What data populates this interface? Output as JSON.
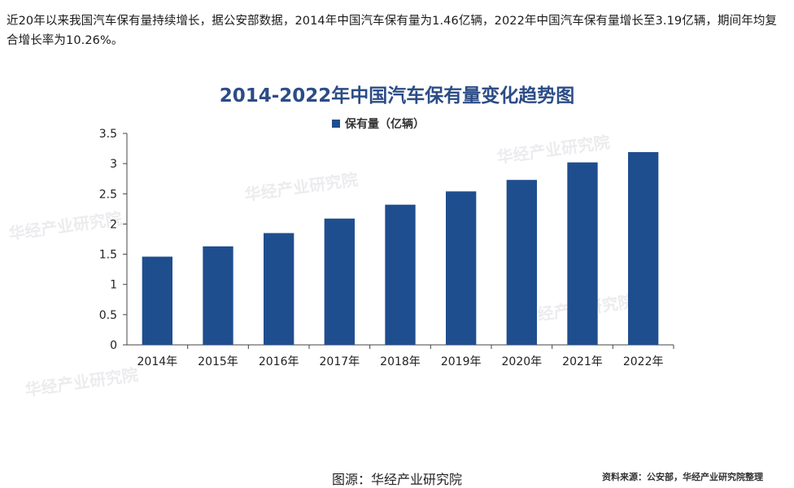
{
  "intro_text": "近20年以来我国汽车保有量持续增长，据公安部数据，2014年中国汽车保有量为1.46亿辆，2022年中国汽车保有量增长至3.19亿辆，期间年均复合增长率为10.26%。",
  "source_note": "资料来源：公安部，华经产业研究院整理",
  "caption": "图源：华经产业研究院",
  "watermark_text": "华经产业研究院",
  "colors": {
    "bar": "#1f4e8f",
    "title": "#2c4c86",
    "axis": "#444444"
  },
  "chart_data": {
    "type": "bar",
    "title": "2014-2022年中国汽车保有量变化趋势图",
    "categories": [
      "2014年",
      "2015年",
      "2016年",
      "2017年",
      "2018年",
      "2019年",
      "2020年",
      "2021年",
      "2022年"
    ],
    "series": [
      {
        "name": "保有量（亿辆）",
        "values": [
          1.46,
          1.63,
          1.85,
          2.09,
          2.32,
          2.54,
          2.73,
          3.02,
          3.19
        ]
      }
    ],
    "xlabel": "",
    "ylabel": "",
    "ylim": [
      0,
      3.5
    ],
    "yticks": [
      "0",
      "0.5",
      "1",
      "1.5",
      "2",
      "2.5",
      "3",
      "3.5"
    ],
    "grid": false,
    "legend_position": "top-center"
  }
}
